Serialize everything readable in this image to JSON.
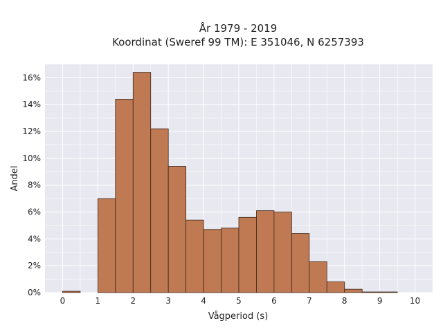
{
  "chart_data": {
    "type": "bar",
    "title_line1": "År 1979 - 2019",
    "title_line2": "Koordinat (Sweref 99 TM): E 351046, N 6257393",
    "xlabel": "Vågperiod (s)",
    "ylabel": "Andel",
    "xlim": [
      -0.5,
      10.5
    ],
    "ylim": [
      0,
      17
    ],
    "x_ticks": [
      0,
      1,
      2,
      3,
      4,
      5,
      6,
      7,
      8,
      9,
      10
    ],
    "x_tick_labels": [
      "0",
      "1",
      "2",
      "3",
      "4",
      "5",
      "6",
      "7",
      "8",
      "9",
      "10"
    ],
    "y_ticks": [
      0,
      2,
      4,
      6,
      8,
      10,
      12,
      14,
      16
    ],
    "y_tick_labels": [
      "0%",
      "2%",
      "4%",
      "6%",
      "8%",
      "10%",
      "12%",
      "14%",
      "16%"
    ],
    "bin_width": 0.5,
    "bins": [
      {
        "start": 0.0,
        "value": 0.1
      },
      {
        "start": 0.5,
        "value": 0.0
      },
      {
        "start": 1.0,
        "value": 7.0
      },
      {
        "start": 1.5,
        "value": 14.4
      },
      {
        "start": 2.0,
        "value": 16.4
      },
      {
        "start": 2.5,
        "value": 12.2
      },
      {
        "start": 3.0,
        "value": 9.4
      },
      {
        "start": 3.5,
        "value": 5.4
      },
      {
        "start": 4.0,
        "value": 4.7
      },
      {
        "start": 4.5,
        "value": 4.8
      },
      {
        "start": 5.0,
        "value": 5.6
      },
      {
        "start": 5.5,
        "value": 6.1
      },
      {
        "start": 6.0,
        "value": 6.0
      },
      {
        "start": 6.5,
        "value": 4.4
      },
      {
        "start": 7.0,
        "value": 2.3
      },
      {
        "start": 7.5,
        "value": 0.8
      },
      {
        "start": 8.0,
        "value": 0.25
      },
      {
        "start": 8.5,
        "value": 0.05
      },
      {
        "start": 9.0,
        "value": 0.05
      }
    ],
    "colors": {
      "bar_fill": "#c07a53",
      "bar_edge": "#3a2418",
      "plot_background": "#e8e8f0",
      "grid": "#ffffff"
    },
    "grid": true
  }
}
